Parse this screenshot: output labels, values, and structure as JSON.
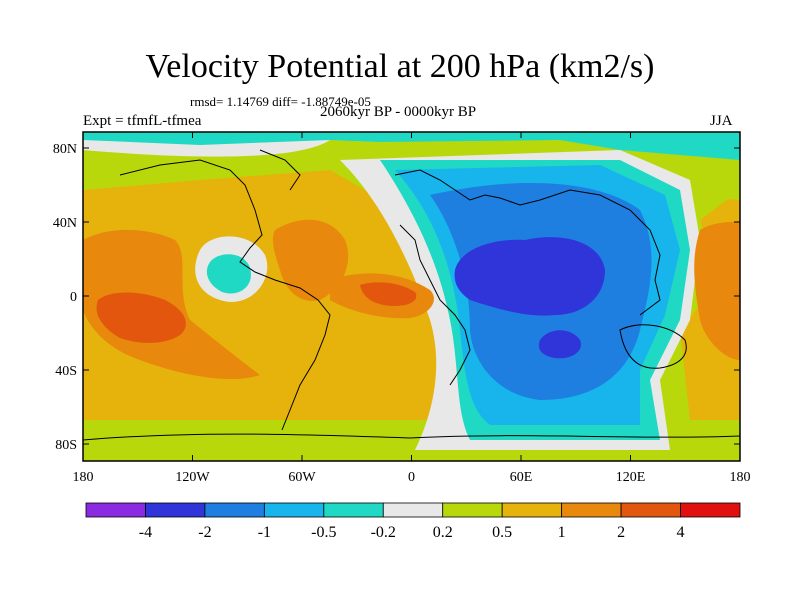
{
  "title": "Velocity Potential at 200 hPa (km2/s)",
  "stats": "rmsd= 1.14769  diff= -1.88749e-05",
  "experiment": "Expt = tfmfL-tfmea",
  "period": "2060kyr BP - 0000kyr BP",
  "season": "JJA",
  "lat_labels": [
    "80N",
    "40N",
    "0",
    "40S",
    "80S"
  ],
  "lon_labels": [
    "180",
    "120W",
    "60W",
    "0",
    "60E",
    "120E",
    "180"
  ],
  "colorbar": {
    "labels": [
      "-4",
      "-2",
      "-1",
      "-0.5",
      "-0.2",
      "0.2",
      "0.5",
      "1",
      "2",
      "4"
    ],
    "colors": [
      "#8a2be2",
      "#2f35d8",
      "#1e7fe0",
      "#18b4ec",
      "#1fd9c4",
      "#e8e8e8",
      "#b9d80c",
      "#e5b30c",
      "#e8880c",
      "#e3560e",
      "#e01010"
    ]
  }
}
